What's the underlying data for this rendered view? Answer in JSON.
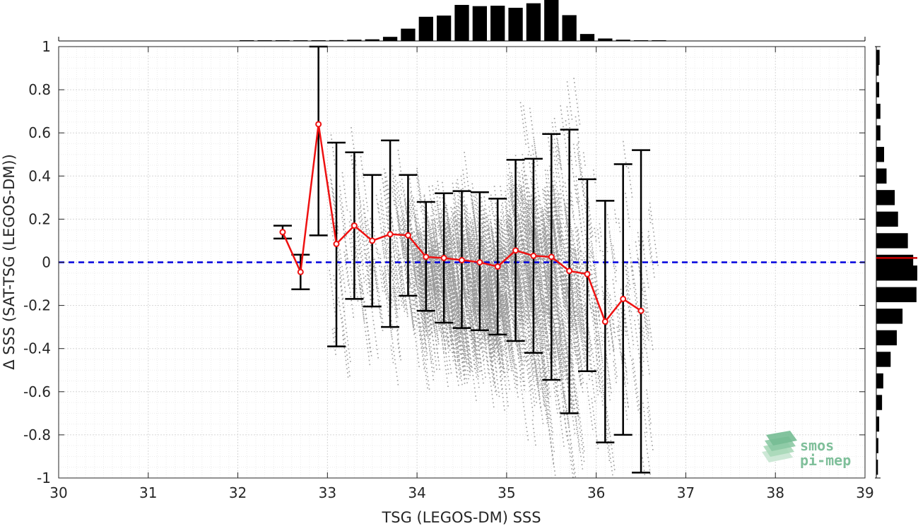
{
  "chart_data": {
    "type": "scatter",
    "xlabel": "TSG (LEGOS-DM) SSS",
    "ylabel": "Δ SSS (SAT-TSG (LEGOS-DM))",
    "xlim": [
      30,
      39
    ],
    "ylim": [
      -1,
      1
    ],
    "x_ticks": [
      "30",
      "31",
      "32",
      "33",
      "34",
      "35",
      "36",
      "37",
      "38",
      "39"
    ],
    "y_ticks": [
      "1",
      "0.8",
      "0.6",
      "0.4",
      "0.2",
      "0",
      "-0.2",
      "-0.4",
      "-0.6",
      "-0.8",
      "-1"
    ],
    "grid": true,
    "zero_line": {
      "y": 0,
      "color": "#0000dd",
      "style": "dashed"
    },
    "binned_series": {
      "color": "#ee1111",
      "x": [
        32.5,
        32.7,
        32.9,
        33.1,
        33.3,
        33.5,
        33.7,
        33.9,
        34.1,
        34.3,
        34.5,
        34.7,
        34.9,
        35.1,
        35.3,
        35.5,
        35.7,
        35.9,
        36.1,
        36.3,
        36.5
      ],
      "mean": [
        0.14,
        -0.045,
        0.64,
        0.085,
        0.17,
        0.1,
        0.13,
        0.125,
        0.025,
        0.02,
        0.01,
        0.0,
        -0.02,
        0.055,
        0.03,
        0.025,
        -0.04,
        -0.055,
        -0.275,
        -0.17,
        -0.225
      ],
      "lower": [
        0.11,
        -0.125,
        0.125,
        -0.39,
        -0.17,
        -0.205,
        -0.3,
        -0.155,
        -0.225,
        -0.28,
        -0.305,
        -0.315,
        -0.335,
        -0.365,
        -0.42,
        -0.545,
        -0.7,
        -0.505,
        -0.835,
        -0.8,
        -0.975
      ],
      "upper": [
        0.17,
        0.035,
        1.0,
        0.555,
        0.51,
        0.405,
        0.565,
        0.405,
        0.28,
        0.32,
        0.33,
        0.325,
        0.295,
        0.475,
        0.48,
        0.595,
        0.615,
        0.385,
        0.285,
        0.455,
        0.52
      ]
    },
    "scatter_color": "#909090",
    "top_histogram": {
      "bin_centers": [
        32.1,
        32.3,
        32.5,
        32.7,
        32.9,
        33.1,
        33.3,
        33.5,
        33.7,
        33.9,
        34.1,
        34.3,
        34.5,
        34.7,
        34.9,
        35.1,
        35.3,
        35.5,
        35.7,
        35.9,
        36.1,
        36.3,
        36.5,
        36.7
      ],
      "relative_heights": [
        0.0,
        0.0,
        0.01,
        0.01,
        0.01,
        0.02,
        0.03,
        0.04,
        0.1,
        0.3,
        0.59,
        0.62,
        0.88,
        0.85,
        0.86,
        0.81,
        0.92,
        1.0,
        0.63,
        0.17,
        0.06,
        0.03,
        0.01,
        0.01
      ]
    },
    "right_histogram": {
      "bin_centers": [
        0.95,
        0.9,
        0.85,
        0.8,
        0.75,
        0.7,
        0.65,
        0.6,
        0.55,
        0.5,
        0.45,
        0.4,
        0.35,
        0.3,
        0.25,
        0.2,
        0.15,
        0.1,
        0.05,
        0.0,
        -0.05,
        -0.1,
        -0.15,
        -0.2,
        -0.25,
        -0.3,
        -0.35,
        -0.4,
        -0.45,
        -0.5,
        -0.55,
        -0.6,
        -0.65,
        -0.7,
        -0.75,
        -0.8,
        -0.85,
        -0.9,
        -0.95
      ],
      "relative_widths": [
        0.08,
        0.06,
        0.0,
        0.07,
        0.0,
        0.1,
        0.0,
        0.1,
        0.0,
        0.19,
        0.0,
        0.25,
        0.0,
        0.45,
        0.0,
        0.53,
        0.0,
        0.77,
        0.0,
        0.9,
        1.0,
        0.0,
        0.98,
        0.0,
        0.64,
        0.0,
        0.5,
        0.0,
        0.35,
        0.0,
        0.17,
        0.0,
        0.14,
        0.0,
        0.07,
        0.0,
        0.05,
        0.0,
        0.04
      ],
      "mean_marker": 0.02,
      "mean_marker_color": "#cc0000"
    }
  },
  "logo": {
    "line1": "smos",
    "line2": "pi-mep"
  }
}
